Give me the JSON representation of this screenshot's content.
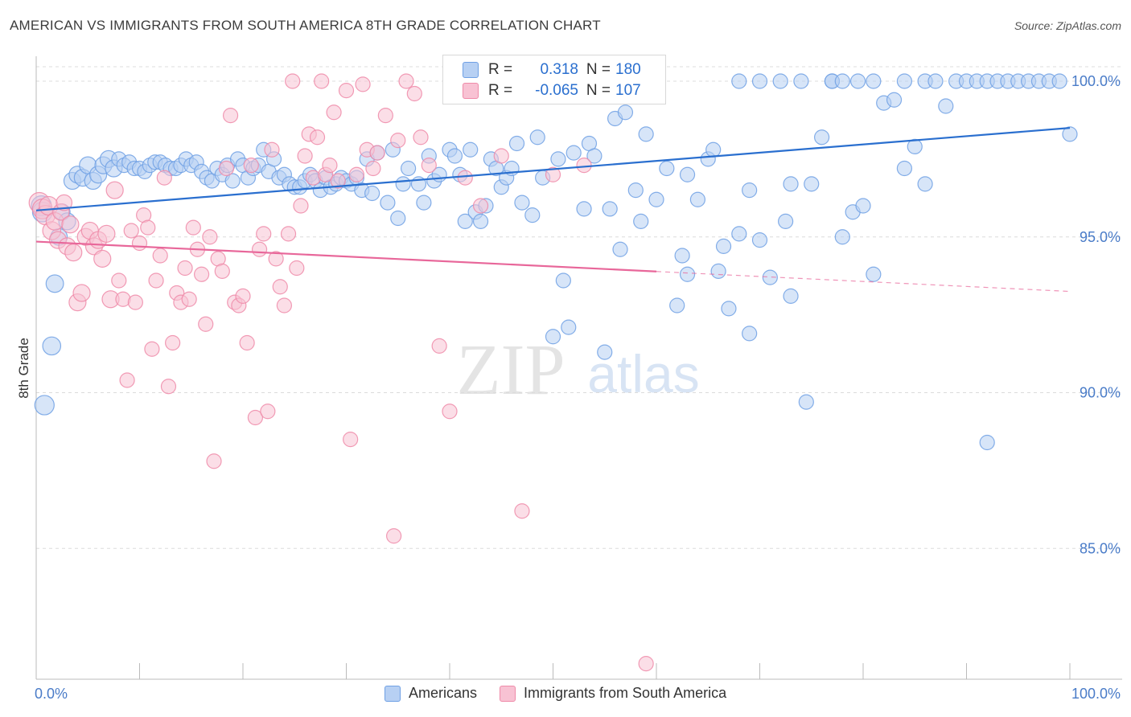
{
  "header": {
    "title": "AMERICAN VS IMMIGRANTS FROM SOUTH AMERICA 8TH GRADE CORRELATION CHART",
    "source": "Source: ZipAtlas.com"
  },
  "stats": [
    {
      "r_label": "R =",
      "r_value": "0.318",
      "n_label": "N =",
      "n_value": "180",
      "color": "#6fa0e4",
      "fill": "#b7d0f3"
    },
    {
      "r_label": "R =",
      "r_value": "-0.065",
      "n_label": "N =",
      "n_value": "107",
      "color": "#ef8aa8",
      "fill": "#f8c2d3"
    }
  ],
  "legend": {
    "americans": "Americans",
    "immigrants": "Immigrants from South America"
  },
  "colors": {
    "blue_stroke": "#6fa0e4",
    "blue_fill": "#b7d0f3",
    "blue_line": "#2a6fcf",
    "pink_stroke": "#ef8aa8",
    "pink_fill": "#f8c2d3",
    "pink_line": "#e8679a",
    "axis_label_color": "#4a7cc8"
  },
  "chart_data": {
    "type": "scatter",
    "title": "AMERICAN VS IMMIGRANTS FROM SOUTH AMERICA 8TH GRADE CORRELATION CHART",
    "xlabel": "",
    "ylabel": "8th Grade",
    "xlim": [
      0,
      100
    ],
    "ylim": [
      80.8,
      100.8
    ],
    "x_tick_labels": [
      "0.0%",
      "100.0%"
    ],
    "y_ticks": [
      85,
      90,
      95,
      100
    ],
    "y_tick_labels": [
      "85.0%",
      "90.0%",
      "95.0%",
      "100.0%"
    ],
    "grid": true,
    "watermark": {
      "zip": "ZIP",
      "atlas": "atlas"
    },
    "series": [
      {
        "name": "Americans",
        "trend": {
          "x": [
            0,
            100
          ],
          "y": [
            95.85,
            98.5
          ],
          "dashed_from": null
        },
        "points": [
          [
            0.5,
            96
          ],
          [
            0.6,
            95.8
          ],
          [
            0.8,
            89.6
          ],
          [
            1.5,
            91.5
          ],
          [
            1.8,
            93.5
          ],
          [
            2.2,
            95
          ],
          [
            2.5,
            95.8
          ],
          [
            3,
            95.5
          ],
          [
            3.5,
            96.8
          ],
          [
            4,
            97.0
          ],
          [
            4.5,
            96.9
          ],
          [
            5,
            97.3
          ],
          [
            5.5,
            96.8
          ],
          [
            6,
            97.0
          ],
          [
            6.5,
            97.3
          ],
          [
            7,
            97.5
          ],
          [
            7.5,
            97.2
          ],
          [
            8,
            97.5
          ],
          [
            8.5,
            97.3
          ],
          [
            9,
            97.4
          ],
          [
            9.5,
            97.2
          ],
          [
            10,
            97.2
          ],
          [
            10.5,
            97.1
          ],
          [
            11,
            97.3
          ],
          [
            11.5,
            97.4
          ],
          [
            12,
            97.4
          ],
          [
            12.5,
            97.3
          ],
          [
            13,
            97.2
          ],
          [
            13.5,
            97.2
          ],
          [
            14,
            97.3
          ],
          [
            14.5,
            97.5
          ],
          [
            15,
            97.3
          ],
          [
            15.5,
            97.4
          ],
          [
            16,
            97.1
          ],
          [
            16.5,
            96.9
          ],
          [
            17,
            96.8
          ],
          [
            17.5,
            97.2
          ],
          [
            18,
            97.0
          ],
          [
            18.5,
            97.3
          ],
          [
            19,
            96.8
          ],
          [
            19.5,
            97.5
          ],
          [
            20,
            97.3
          ],
          [
            20.5,
            96.9
          ],
          [
            21,
            97.2
          ],
          [
            21.5,
            97.3
          ],
          [
            22,
            97.8
          ],
          [
            22.5,
            97.1
          ],
          [
            23,
            97.5
          ],
          [
            23.5,
            96.9
          ],
          [
            24,
            97.0
          ],
          [
            24.5,
            96.7
          ],
          [
            25,
            96.6
          ],
          [
            25.5,
            96.6
          ],
          [
            26,
            96.8
          ],
          [
            26.5,
            97.0
          ],
          [
            27,
            96.8
          ],
          [
            27.5,
            96.5
          ],
          [
            28,
            96.9
          ],
          [
            28.5,
            96.6
          ],
          [
            29,
            96.7
          ],
          [
            29.5,
            96.9
          ],
          [
            30,
            96.8
          ],
          [
            30.5,
            96.7
          ],
          [
            31,
            96.9
          ],
          [
            31.5,
            96.5
          ],
          [
            32,
            97.5
          ],
          [
            32.5,
            96.4
          ],
          [
            33,
            97.7
          ],
          [
            34,
            96.1
          ],
          [
            34.5,
            97.8
          ],
          [
            35,
            95.6
          ],
          [
            35.5,
            96.7
          ],
          [
            36,
            97.2
          ],
          [
            37,
            96.7
          ],
          [
            37.5,
            96.1
          ],
          [
            38,
            97.6
          ],
          [
            38.5,
            96.8
          ],
          [
            39,
            97.0
          ],
          [
            40,
            97.8
          ],
          [
            40.5,
            97.6
          ],
          [
            41,
            97.0
          ],
          [
            41.5,
            95.5
          ],
          [
            42,
            97.8
          ],
          [
            42.5,
            95.8
          ],
          [
            43,
            95.5
          ],
          [
            43.5,
            96.0
          ],
          [
            44,
            97.5
          ],
          [
            44.5,
            97.2
          ],
          [
            45,
            96.6
          ],
          [
            45.5,
            96.9
          ],
          [
            46,
            97.2
          ],
          [
            46.5,
            98.0
          ],
          [
            47,
            96.1
          ],
          [
            48,
            95.7
          ],
          [
            48.5,
            98.2
          ],
          [
            49,
            96.9
          ],
          [
            50,
            91.8
          ],
          [
            50.5,
            97.5
          ],
          [
            51,
            93.6
          ],
          [
            51.5,
            92.1
          ],
          [
            52,
            97.7
          ],
          [
            53,
            95.9
          ],
          [
            53.5,
            98.0
          ],
          [
            54,
            97.6
          ],
          [
            55,
            91.3
          ],
          [
            55.5,
            95.9
          ],
          [
            56,
            98.8
          ],
          [
            56.5,
            94.6
          ],
          [
            57,
            99.0
          ],
          [
            58,
            96.5
          ],
          [
            58.5,
            95.5
          ],
          [
            59,
            98.3
          ],
          [
            60,
            96.2
          ],
          [
            61,
            97.2
          ],
          [
            62,
            92.8
          ],
          [
            62.5,
            94.4
          ],
          [
            63,
            93.8
          ],
          [
            63,
            97.0
          ],
          [
            64,
            96.2
          ],
          [
            65,
            97.5
          ],
          [
            65.5,
            97.8
          ],
          [
            66,
            93.9
          ],
          [
            66.5,
            94.7
          ],
          [
            67,
            92.7
          ],
          [
            68,
            100.0
          ],
          [
            68,
            95.1
          ],
          [
            69,
            91.9
          ],
          [
            69,
            96.5
          ],
          [
            70,
            94.9
          ],
          [
            70,
            100
          ],
          [
            71,
            93.7
          ],
          [
            72,
            100
          ],
          [
            72.5,
            95.5
          ],
          [
            73,
            93.1
          ],
          [
            73,
            96.7
          ],
          [
            74,
            100
          ],
          [
            74.5,
            89.7
          ],
          [
            75,
            96.7
          ],
          [
            76,
            98.2
          ],
          [
            77,
            100
          ],
          [
            77,
            100
          ],
          [
            78,
            95.0
          ],
          [
            78,
            100
          ],
          [
            79,
            95.8
          ],
          [
            79.5,
            100
          ],
          [
            80,
            96.0
          ],
          [
            81,
            93.8
          ],
          [
            81,
            100
          ],
          [
            82,
            99.3
          ],
          [
            83,
            99.4
          ],
          [
            84,
            97.2
          ],
          [
            84,
            100
          ],
          [
            85,
            97.9
          ],
          [
            86,
            100
          ],
          [
            86,
            96.7
          ],
          [
            87,
            100
          ],
          [
            88,
            99.2
          ],
          [
            89,
            100
          ],
          [
            90,
            100
          ],
          [
            91,
            100
          ],
          [
            92,
            88.4
          ],
          [
            92,
            100
          ],
          [
            93,
            100
          ],
          [
            94,
            100
          ],
          [
            95,
            100
          ],
          [
            96,
            100
          ],
          [
            97,
            100
          ],
          [
            98,
            100
          ],
          [
            99,
            100
          ],
          [
            100,
            98.3
          ]
        ]
      },
      {
        "name": "Immigrants from South America",
        "trend": {
          "x": [
            0,
            100
          ],
          "y": [
            94.85,
            93.25
          ],
          "dashed_from": 60
        },
        "points": [
          [
            0.3,
            96.1
          ],
          [
            0.6,
            95.9
          ],
          [
            0.9,
            95.7
          ],
          [
            1.2,
            96.0
          ],
          [
            1.5,
            95.2
          ],
          [
            1.8,
            95.5
          ],
          [
            2.1,
            94.9
          ],
          [
            2.4,
            95.8
          ],
          [
            2.7,
            96.1
          ],
          [
            3,
            94.7
          ],
          [
            3.3,
            95.4
          ],
          [
            3.6,
            94.5
          ],
          [
            4,
            92.9
          ],
          [
            4.4,
            93.2
          ],
          [
            4.8,
            95.0
          ],
          [
            5.2,
            95.2
          ],
          [
            5.6,
            94.7
          ],
          [
            6,
            94.9
          ],
          [
            6.4,
            94.3
          ],
          [
            6.8,
            95.1
          ],
          [
            7.2,
            93.0
          ],
          [
            7.6,
            96.5
          ],
          [
            8,
            93.6
          ],
          [
            8.4,
            93.0
          ],
          [
            8.8,
            90.4
          ],
          [
            9.2,
            95.2
          ],
          [
            9.6,
            92.9
          ],
          [
            10,
            94.8
          ],
          [
            10.4,
            95.7
          ],
          [
            10.8,
            95.3
          ],
          [
            11.2,
            91.4
          ],
          [
            11.6,
            93.6
          ],
          [
            12,
            94.4
          ],
          [
            12.4,
            96.9
          ],
          [
            12.8,
            90.2
          ],
          [
            13.2,
            91.6
          ],
          [
            13.6,
            93.2
          ],
          [
            14,
            92.9
          ],
          [
            14.4,
            94.0
          ],
          [
            14.8,
            93.0
          ],
          [
            15.2,
            95.3
          ],
          [
            15.6,
            94.6
          ],
          [
            16,
            93.8
          ],
          [
            16.4,
            92.2
          ],
          [
            16.8,
            95.0
          ],
          [
            17.2,
            87.8
          ],
          [
            17.6,
            94.3
          ],
          [
            18,
            93.9
          ],
          [
            18.4,
            97.2
          ],
          [
            18.8,
            98.9
          ],
          [
            19.2,
            92.9
          ],
          [
            19.6,
            92.8
          ],
          [
            20,
            93.1
          ],
          [
            20.4,
            91.6
          ],
          [
            20.8,
            97.3
          ],
          [
            21.2,
            89.2
          ],
          [
            21.6,
            94.6
          ],
          [
            22,
            95.1
          ],
          [
            22.4,
            89.4
          ],
          [
            22.8,
            97.8
          ],
          [
            23.2,
            94.3
          ],
          [
            23.6,
            93.4
          ],
          [
            24,
            92.8
          ],
          [
            24.4,
            95.1
          ],
          [
            24.8,
            100
          ],
          [
            25.2,
            94.0
          ],
          [
            25.6,
            96.0
          ],
          [
            26,
            97.6
          ],
          [
            26.4,
            98.3
          ],
          [
            26.8,
            96.9
          ],
          [
            27.2,
            98.2
          ],
          [
            27.6,
            100
          ],
          [
            28,
            97.0
          ],
          [
            28.4,
            97.3
          ],
          [
            28.8,
            99.0
          ],
          [
            29.2,
            96.8
          ],
          [
            30,
            99.7
          ],
          [
            30.4,
            88.5
          ],
          [
            31,
            97.0
          ],
          [
            31.6,
            99.9
          ],
          [
            32,
            97.8
          ],
          [
            32.6,
            97.2
          ],
          [
            33,
            97.7
          ],
          [
            33.8,
            98.9
          ],
          [
            34.6,
            85.4
          ],
          [
            35,
            98.1
          ],
          [
            35.8,
            100
          ],
          [
            36.6,
            99.6
          ],
          [
            37.2,
            98.2
          ],
          [
            38,
            97.3
          ],
          [
            39,
            91.5
          ],
          [
            40,
            89.4
          ],
          [
            41.5,
            96.9
          ],
          [
            43,
            96.0
          ],
          [
            45,
            97.6
          ],
          [
            47,
            86.2
          ],
          [
            50,
            97.0
          ],
          [
            53,
            97.3
          ],
          [
            59,
            81.3
          ]
        ]
      }
    ]
  }
}
